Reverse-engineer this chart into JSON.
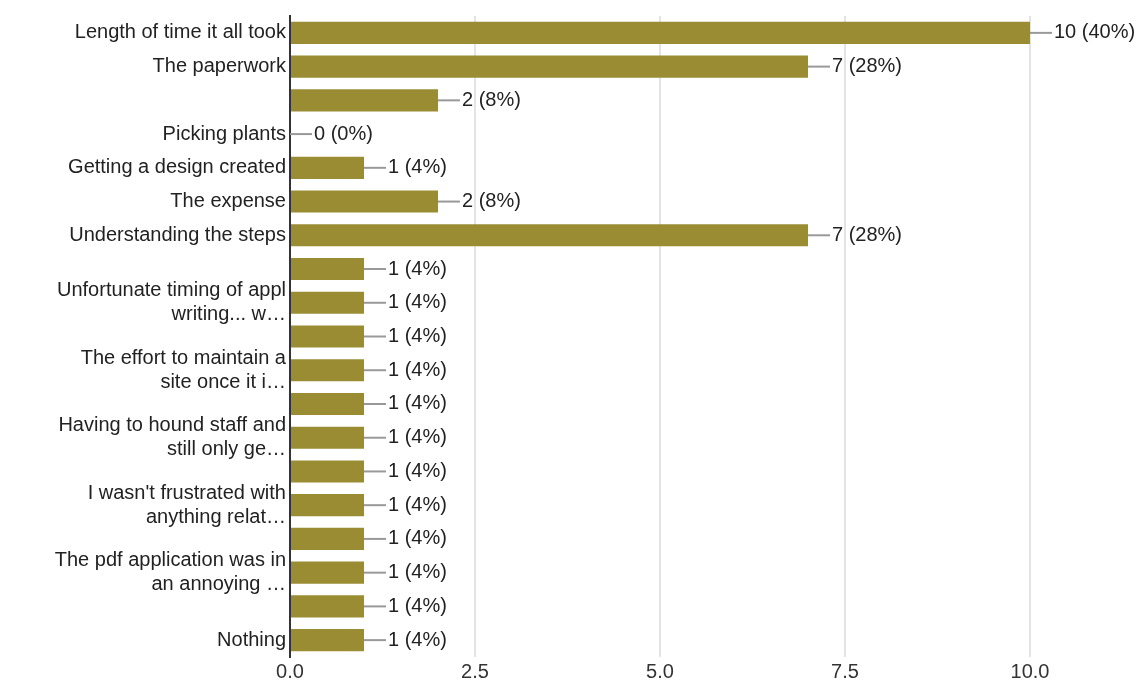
{
  "chart_data": {
    "type": "bar",
    "orientation": "horizontal",
    "categories": [
      "Length of time it all took",
      "The paperwork",
      null,
      "Picking plants",
      "Getting a design created",
      "The expense",
      "Understanding the steps",
      null,
      "Unfortunate timing of appl writing... w…",
      null,
      "The effort to maintain a site once it i…",
      null,
      "Having to hound staff and still only ge…",
      null,
      "I wasn't frustrated with anything relat…",
      null,
      "The pdf application was in an annoying …",
      null,
      "Nothing"
    ],
    "values": [
      10,
      7,
      2,
      0,
      1,
      2,
      7,
      1,
      1,
      1,
      1,
      1,
      1,
      1,
      1,
      1,
      1,
      1,
      1
    ],
    "value_labels": [
      "10 (40%)",
      "7 (28%)",
      "2 (8%)",
      "0 (0%)",
      "1 (4%)",
      "2 (8%)",
      "7 (28%)",
      "1 (4%)",
      "1 (4%)",
      "1 (4%)",
      "1 (4%)",
      "1 (4%)",
      "1 (4%)",
      "1 (4%)",
      "1 (4%)",
      "1 (4%)",
      "1 (4%)",
      "1 (4%)",
      "1 (4%)"
    ],
    "color": "#9a8c33",
    "xlim": [
      0,
      10
    ],
    "xticks": [
      {
        "value": 0,
        "label": "0.0"
      },
      2.5,
      {
        "value": 5,
        "label": "5.0"
      },
      7.5,
      {
        "value": 10,
        "label": "10.0"
      }
    ],
    "grid": "x",
    "legend": false
  }
}
